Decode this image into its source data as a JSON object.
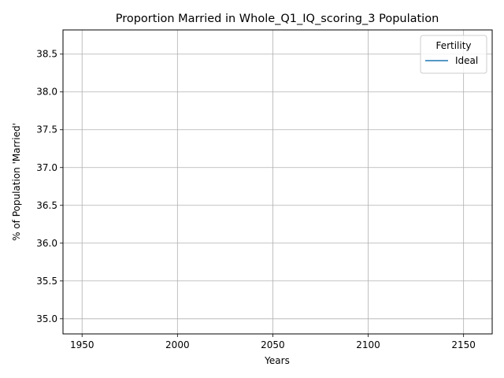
{
  "chart_data": {
    "type": "line",
    "title": "Proportion Married in Whole_Q1_IQ_scoring_3 Population",
    "xlabel": "Years",
    "ylabel": "% of Population 'Married'",
    "xlim": [
      1940,
      2165
    ],
    "ylim": [
      34.8,
      38.82
    ],
    "x_ticks": [
      1950,
      2000,
      2050,
      2100,
      2150
    ],
    "y_ticks": [
      35.0,
      35.5,
      36.0,
      36.5,
      37.0,
      37.5,
      38.0,
      38.5
    ],
    "x_tick_labels": [
      "1950",
      "2000",
      "2050",
      "2100",
      "2150"
    ],
    "y_tick_labels": [
      "35.0",
      "35.5",
      "36.0",
      "36.5",
      "37.0",
      "37.5",
      "38.0",
      "38.5"
    ],
    "grid": true,
    "legend": {
      "title": "Fertility",
      "placement": "top-right"
    },
    "series": [
      {
        "name": "Ideal",
        "color": "#1f77b4",
        "x": [],
        "y": []
      }
    ]
  }
}
